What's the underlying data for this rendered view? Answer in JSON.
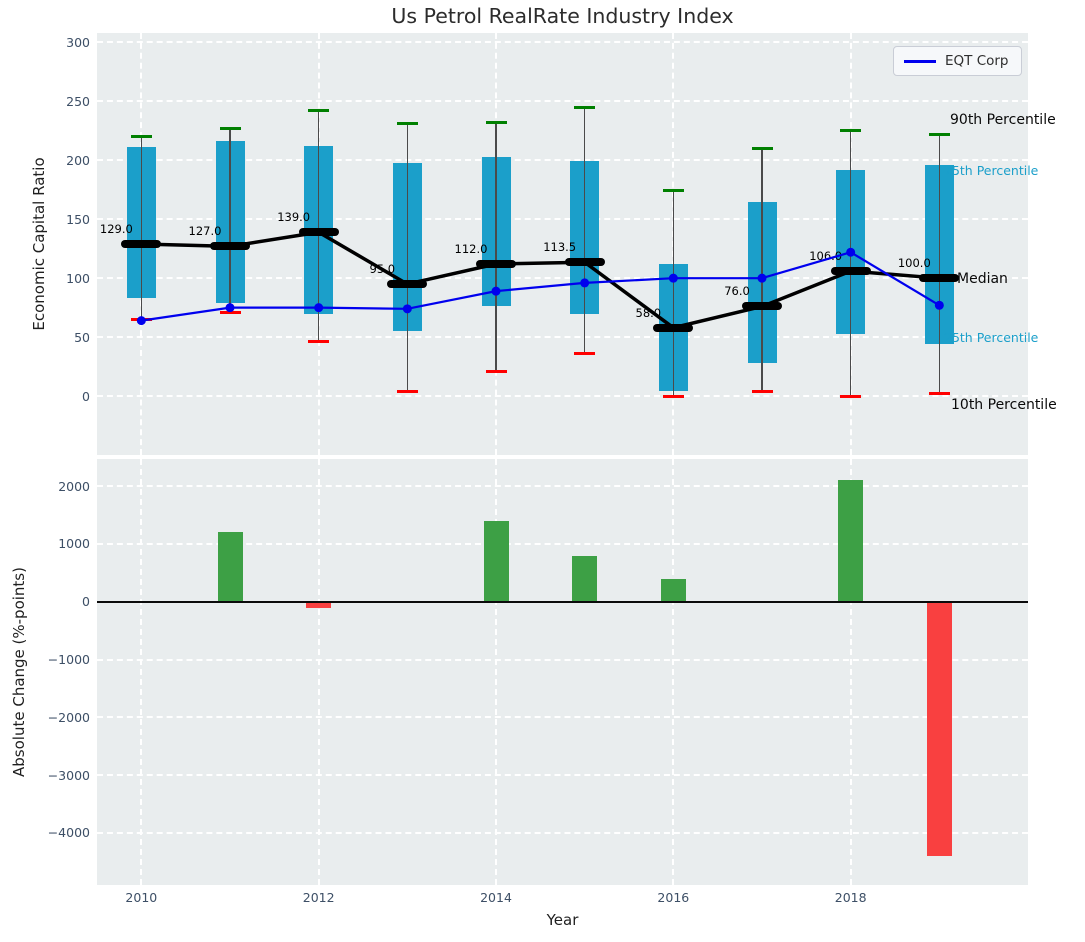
{
  "title": "Us Petrol RealRate Industry Index",
  "legend": {
    "label": "EQT Corp"
  },
  "axis": {
    "top_ylabel": "Economic Capital Ratio",
    "bottom_ylabel": "Absolute Change (%-points)",
    "xlabel": "Year"
  },
  "annotations": [
    {
      "label": "90th Percentile",
      "tone": "dark"
    },
    {
      "label": "75th Percentile",
      "tone": "cyan"
    },
    {
      "label": "Median",
      "tone": "dark"
    },
    {
      "label": "25th Percentile",
      "tone": "cyan"
    },
    {
      "label": "10th Percentile",
      "tone": "dark"
    }
  ],
  "colors": {
    "box": "#1b9fca",
    "p90_cap": "#008000",
    "p10_cap": "#ff0000",
    "median": "#000000",
    "eqt_line": "#0000ee",
    "bar_positive": "#3da045",
    "bar_negative": "#f94040",
    "plot_bg": "#e9edee",
    "grid": "#ffffff",
    "tick_text": "#3d4f66",
    "cyan_label": "#1b9fca",
    "whisker": "#4a4a4a"
  },
  "chart_data": [
    {
      "type": "box",
      "title": "Us Petrol RealRate Industry Index",
      "ylabel": "Economic Capital Ratio",
      "ylim": [
        -50,
        308
      ],
      "grid": true,
      "legend_position": "upper right",
      "yticks": [
        {
          "v": 300,
          "label": "300"
        },
        {
          "v": 250,
          "label": "250"
        },
        {
          "v": 200,
          "label": "200"
        },
        {
          "v": 150,
          "label": "150"
        },
        {
          "v": 100,
          "label": "100"
        },
        {
          "v": 50,
          "label": "50"
        },
        {
          "v": 0,
          "label": "0"
        }
      ],
      "years": [
        2010,
        2011,
        2012,
        2013,
        2014,
        2015,
        2016,
        2017,
        2018,
        2019
      ],
      "percentile_90": [
        220,
        227,
        242,
        231,
        232,
        245,
        174,
        210,
        225,
        222
      ],
      "percentile_75": [
        211,
        216,
        212,
        198,
        203,
        199,
        112,
        165,
        192,
        196
      ],
      "median": [
        129,
        127,
        139,
        95,
        112,
        113.5,
        58,
        76,
        106,
        100
      ],
      "median_labels": [
        "129.0",
        "127.0",
        "139.0",
        "95.0",
        "112.0",
        "113.5",
        "58.0",
        "76.0",
        "106.0",
        "100.0"
      ],
      "percentile_25": [
        83,
        79,
        70,
        55,
        76,
        70,
        4,
        28,
        53,
        44
      ],
      "percentile_10": [
        65,
        71,
        46,
        4,
        21,
        36,
        0,
        4,
        0,
        2
      ],
      "series": [
        {
          "name": "EQT Corp",
          "values": [
            64,
            75,
            75,
            74,
            89,
            96,
            100,
            100,
            122,
            77
          ]
        }
      ]
    },
    {
      "type": "bar",
      "ylabel": "Absolute Change (%-points)",
      "xlabel": "Year",
      "ylim": [
        -4900,
        2470
      ],
      "grid": true,
      "yticks": [
        {
          "v": 2000,
          "label": "2000"
        },
        {
          "v": 1000,
          "label": "1000"
        },
        {
          "v": 0,
          "label": "0"
        },
        {
          "v": -1000,
          "label": "−1000"
        },
        {
          "v": -2000,
          "label": "−2000"
        },
        {
          "v": -3000,
          "label": "−3000"
        },
        {
          "v": -4000,
          "label": "−4000"
        }
      ],
      "xticks": [
        {
          "v": 2010,
          "label": "2010"
        },
        {
          "v": 2012,
          "label": "2012"
        },
        {
          "v": 2014,
          "label": "2014"
        },
        {
          "v": 2016,
          "label": "2016"
        },
        {
          "v": 2018,
          "label": "2018"
        }
      ],
      "categories": [
        2010,
        2011,
        2012,
        2013,
        2014,
        2015,
        2016,
        2017,
        2018,
        2019
      ],
      "values": [
        0,
        1200,
        -100,
        0,
        1400,
        800,
        400,
        0,
        2100,
        -4400
      ]
    }
  ]
}
